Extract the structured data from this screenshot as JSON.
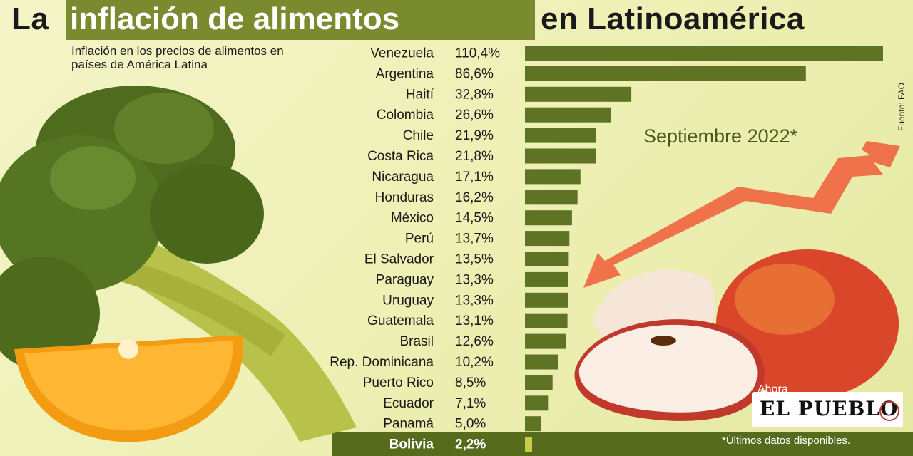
{
  "title": {
    "part1": "La",
    "highlight": "inflación de alimentos",
    "part2": "en Latinoamérica"
  },
  "subtitle": "Inflación en los precios de alimentos en países de América Latina",
  "source": "Fuente: FAO",
  "period": "Septiembre 2022*",
  "footnote": "*Últimos datos disponibles.",
  "logo": {
    "top": "Ahora",
    "name": "EL PUEBLO"
  },
  "colors": {
    "bar": "#5e7424",
    "highlight_bg": "#7a8a2e",
    "bolivia_band": "#566b1c",
    "bolivia_bar": "#c8cc4a"
  },
  "chart_data": {
    "type": "bar",
    "orientation": "horizontal",
    "categories": [
      "Venezuela",
      "Argentina",
      "Haití",
      "Colombia",
      "Chile",
      "Costa Rica",
      "Nicaragua",
      "Honduras",
      "México",
      "Perú",
      "El Salvador",
      "Paraguay",
      "Uruguay",
      "Guatemala",
      "Brasil",
      "Rep. Dominicana",
      "Puerto Rico",
      "Ecuador",
      "Panamá",
      "Bolivia"
    ],
    "values": [
      110.4,
      86.6,
      32.8,
      26.6,
      21.9,
      21.8,
      17.1,
      16.2,
      14.5,
      13.7,
      13.5,
      13.3,
      13.3,
      13.1,
      12.6,
      10.2,
      8.5,
      7.1,
      5.0,
      2.2
    ],
    "labels": [
      "110,4%",
      "86,6%",
      "32,8%",
      "26,6%",
      "21,9%",
      "21,8%",
      "17,1%",
      "16,2%",
      "14,5%",
      "13,7%",
      "13,5%",
      "13,3%",
      "13,3%",
      "13,1%",
      "12,6%",
      "10,2%",
      "8,5%",
      "7,1%",
      "5,0%",
      "2,2%"
    ],
    "highlighted": "Bolivia",
    "xlim": [
      0,
      110.4
    ]
  }
}
